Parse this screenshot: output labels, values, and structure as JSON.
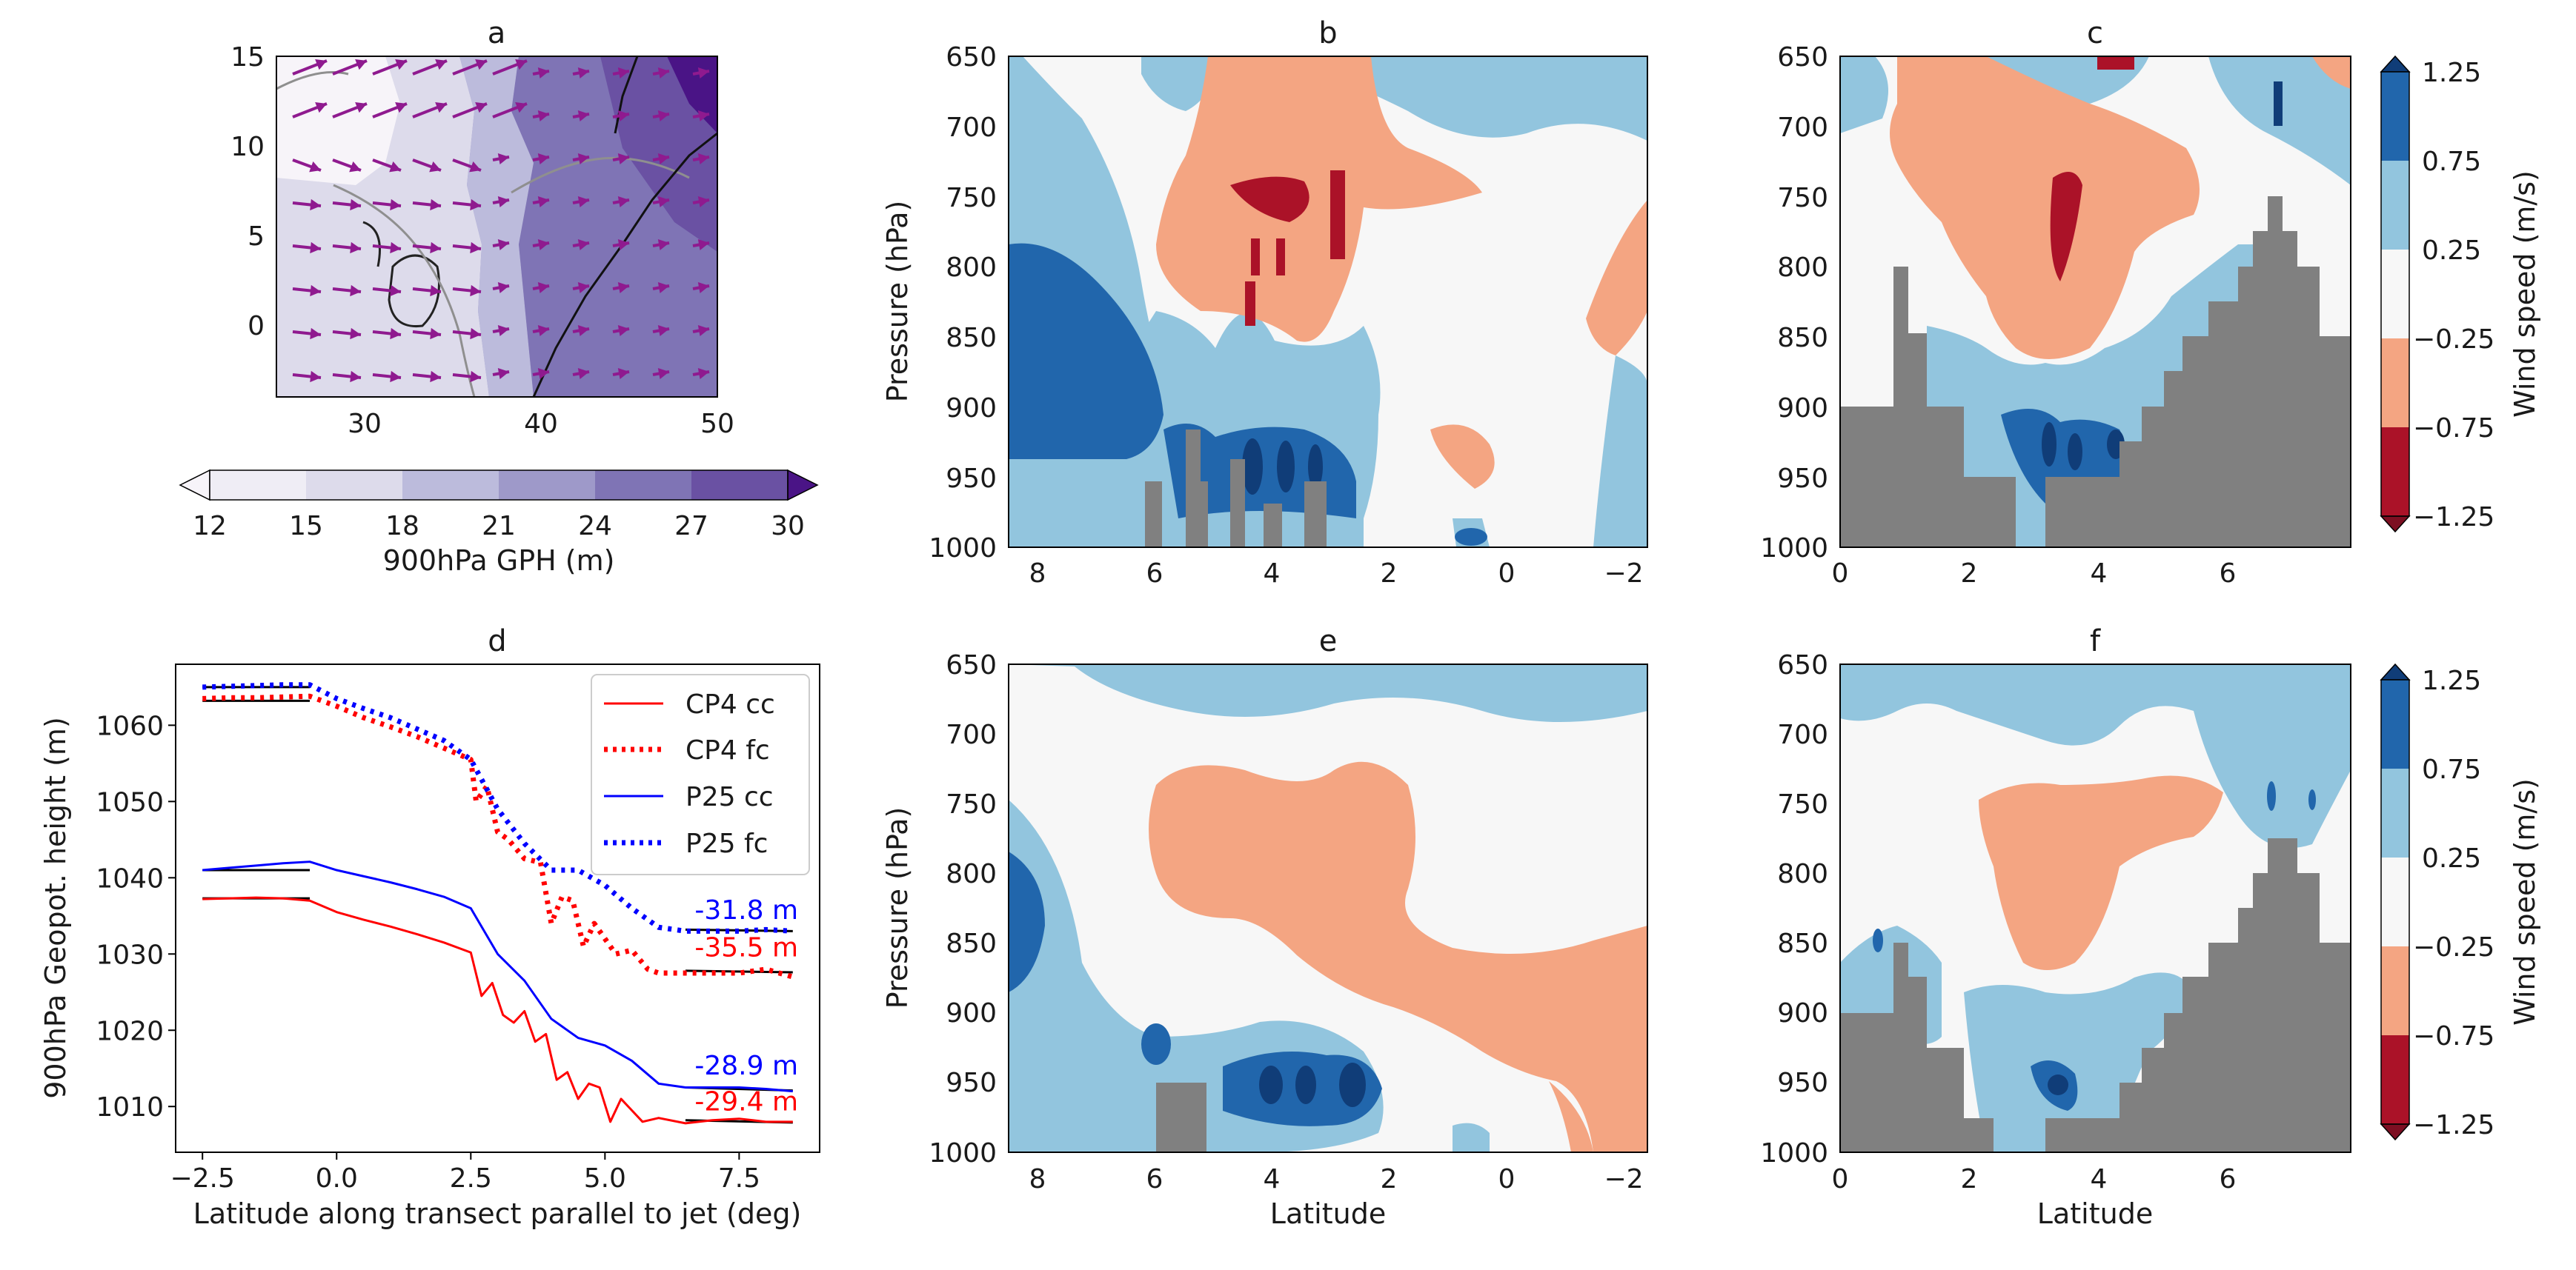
{
  "figure": {
    "colors": {
      "gph": [
        "#f7f4f9",
        "#dddbeb",
        "#bcbbdc",
        "#9e99c9",
        "#7f74b5",
        "#6a51a3",
        "#4a1486"
      ],
      "wind": [
        "#ab1228",
        "#f4a582",
        "#f7f7f7",
        "#92c5de",
        "#2166ac",
        "#103d78"
      ],
      "topo": "#808080",
      "arrow": "#8f1a8f"
    }
  },
  "chart_data": [
    {
      "id": "a",
      "type": "map",
      "title": "a",
      "xticks": [
        "30",
        "40",
        "50"
      ],
      "yticks": [
        "15",
        "10",
        "5",
        "0"
      ],
      "xlim": [
        25,
        50
      ],
      "ylim": [
        -4,
        15
      ],
      "colorbar": {
        "label": "900hPa GPH (m)",
        "ticks": [
          "12",
          "15",
          "18",
          "21",
          "24",
          "27",
          "30"
        ],
        "extend": "both"
      }
    },
    {
      "id": "b",
      "type": "contourf",
      "title": "b",
      "ylabel": "Pressure (hPa)",
      "xlabel": "",
      "yticks": [
        "650",
        "700",
        "750",
        "800",
        "850",
        "900",
        "950",
        "1000"
      ],
      "xticks": [
        "8",
        "6",
        "4",
        "2",
        "0",
        "−2"
      ],
      "xlim": [
        8.5,
        -2.4
      ],
      "ylim": [
        1000,
        650
      ]
    },
    {
      "id": "c",
      "type": "contourf",
      "title": "c",
      "ylabel": "",
      "xlabel": "",
      "yticks": [
        "650",
        "700",
        "750",
        "800",
        "850",
        "900",
        "950",
        "1000"
      ],
      "xticks": [
        "0",
        "2",
        "4",
        "6"
      ],
      "xlim": [
        0,
        7.9
      ],
      "ylim": [
        1000,
        650
      ],
      "colorbar": {
        "label": "Wind speed (m/s)",
        "ticks": [
          "1.25",
          "0.75",
          "0.25",
          "−0.25",
          "−0.75",
          "−1.25"
        ],
        "extend": "both"
      }
    },
    {
      "id": "d",
      "type": "line",
      "title": "d",
      "ylabel": "900hPa Geopot. height (m)",
      "xlabel": "Latitude along transect parallel to jet (deg)",
      "xticks": [
        "−2.5",
        "0.0",
        "2.5",
        "5.0",
        "7.5"
      ],
      "yticks": [
        "1060",
        "1050",
        "1040",
        "1030",
        "1020",
        "1010"
      ],
      "xlim": [
        -3.0,
        9.0
      ],
      "ylim": [
        1004,
        1068
      ],
      "legend_position": "top-right",
      "series": [
        {
          "name": "CP4 cc",
          "color": "#ff0000",
          "style": "solid",
          "x": [
            -2.5,
            -2.0,
            -1.5,
            -1.0,
            -0.5,
            0.0,
            0.5,
            1.0,
            1.5,
            2.0,
            2.5,
            2.7,
            2.9,
            3.1,
            3.3,
            3.5,
            3.7,
            3.9,
            4.1,
            4.3,
            4.5,
            4.7,
            4.9,
            5.1,
            5.3,
            5.5,
            5.7,
            6.0,
            6.5,
            7.0,
            7.5,
            8.0,
            8.5
          ],
          "y": [
            1037.2,
            1037.3,
            1037.4,
            1037.3,
            1037.0,
            1035.5,
            1034.5,
            1033.6,
            1032.6,
            1031.5,
            1030.2,
            1024.5,
            1026.2,
            1022.0,
            1021.0,
            1022.5,
            1018.5,
            1019.5,
            1013.5,
            1014.5,
            1011.0,
            1013.0,
            1012.5,
            1008.0,
            1011.0,
            1009.5,
            1008.0,
            1008.5,
            1007.8,
            1008.2,
            1008.4,
            1008.0,
            1008.0
          ]
        },
        {
          "name": "CP4 fc",
          "color": "#ff0000",
          "style": "dotted",
          "x": [
            -2.5,
            -2.0,
            -1.5,
            -1.0,
            -0.5,
            0.0,
            0.5,
            1.0,
            1.5,
            2.0,
            2.5,
            2.6,
            2.8,
            3.0,
            3.2,
            3.5,
            3.8,
            4.0,
            4.2,
            4.4,
            4.6,
            4.8,
            5.0,
            5.2,
            5.5,
            5.8,
            6.0,
            6.5,
            7.0,
            7.5,
            8.0,
            8.5
          ],
          "y": [
            1063.5,
            1063.6,
            1063.6,
            1063.7,
            1063.8,
            1062.5,
            1061.0,
            1059.8,
            1058.5,
            1057.0,
            1055.5,
            1050.0,
            1052.0,
            1046.0,
            1045.0,
            1042.5,
            1042.0,
            1034.0,
            1037.5,
            1037.0,
            1031.0,
            1034.0,
            1032.0,
            1030.0,
            1030.5,
            1028.0,
            1027.5,
            1027.5,
            1027.5,
            1027.5,
            1028.0,
            1027.0
          ]
        },
        {
          "name": "P25 cc",
          "color": "#0000ff",
          "style": "solid",
          "x": [
            -2.5,
            -2.0,
            -1.5,
            -1.0,
            -0.5,
            0.0,
            0.5,
            1.0,
            1.5,
            2.0,
            2.5,
            3.0,
            3.5,
            4.0,
            4.5,
            5.0,
            5.5,
            6.0,
            6.5,
            7.0,
            7.5,
            8.0,
            8.5
          ],
          "y": [
            1041.0,
            1041.3,
            1041.6,
            1041.9,
            1042.1,
            1041.0,
            1040.2,
            1039.4,
            1038.5,
            1037.5,
            1036.0,
            1030.0,
            1026.5,
            1021.5,
            1019.0,
            1018.0,
            1016.0,
            1013.0,
            1012.5,
            1012.5,
            1012.5,
            1012.3,
            1012.0
          ]
        },
        {
          "name": "P25 fc",
          "color": "#0000ff",
          "style": "dotted",
          "x": [
            -2.5,
            -2.0,
            -1.5,
            -1.0,
            -0.5,
            0.0,
            0.5,
            1.0,
            1.5,
            2.0,
            2.5,
            3.0,
            3.5,
            4.0,
            4.5,
            5.0,
            5.5,
            6.0,
            6.5,
            7.0,
            7.5,
            8.0,
            8.5
          ],
          "y": [
            1065.0,
            1065.1,
            1065.2,
            1065.3,
            1065.3,
            1063.5,
            1062.2,
            1061.0,
            1059.5,
            1058.0,
            1055.5,
            1049.0,
            1044.5,
            1041.0,
            1041.0,
            1039.0,
            1036.0,
            1033.5,
            1033.0,
            1033.0,
            1033.0,
            1033.2,
            1033.0
          ]
        }
      ],
      "fit_lines": [
        {
          "x": [
            -2.5,
            -0.5
          ],
          "y": [
            1037.3,
            1037.3
          ]
        },
        {
          "x": [
            6.5,
            8.5
          ],
          "y": [
            1008.2,
            1007.9
          ]
        },
        {
          "x": [
            -2.5,
            -0.5
          ],
          "y": [
            1063.2,
            1063.2
          ]
        },
        {
          "x": [
            6.5,
            8.5
          ],
          "y": [
            1027.8,
            1027.6
          ]
        },
        {
          "x": [
            -2.5,
            -0.5
          ],
          "y": [
            1041.0,
            1041.0
          ]
        },
        {
          "x": [
            6.5,
            8.5
          ],
          "y": [
            1012.5,
            1012.1
          ]
        },
        {
          "x": [
            -2.5,
            -0.5
          ],
          "y": [
            1065.0,
            1065.0
          ]
        },
        {
          "x": [
            6.5,
            8.5
          ],
          "y": [
            1033.2,
            1033.0
          ]
        }
      ],
      "annotations": [
        {
          "text": "-31.8 m",
          "color": "#0000ff",
          "x": 8.6,
          "y": 1034.6
        },
        {
          "text": "-35.5 m",
          "color": "#ff0000",
          "x": 8.6,
          "y": 1029.7
        },
        {
          "text": "-28.9 m",
          "color": "#0000ff",
          "x": 8.6,
          "y": 1014.2
        },
        {
          "text": "-29.4 m",
          "color": "#ff0000",
          "x": 8.6,
          "y": 1009.5
        }
      ]
    },
    {
      "id": "e",
      "type": "contourf",
      "title": "e",
      "ylabel": "Pressure (hPa)",
      "xlabel": "Latitude",
      "yticks": [
        "650",
        "700",
        "750",
        "800",
        "850",
        "900",
        "950",
        "1000"
      ],
      "xticks": [
        "8",
        "6",
        "4",
        "2",
        "0",
        "−2"
      ],
      "xlim": [
        8.5,
        -2.4
      ],
      "ylim": [
        1000,
        650
      ]
    },
    {
      "id": "f",
      "type": "contourf",
      "title": "f",
      "ylabel": "",
      "xlabel": "Latitude",
      "yticks": [
        "650",
        "700",
        "750",
        "800",
        "850",
        "900",
        "950",
        "1000"
      ],
      "xticks": [
        "0",
        "2",
        "4",
        "6"
      ],
      "xlim": [
        0,
        7.9
      ],
      "ylim": [
        1000,
        650
      ],
      "colorbar": {
        "label": "Wind speed (m/s)",
        "ticks": [
          "1.25",
          "0.75",
          "0.25",
          "−0.25",
          "−0.75",
          "−1.25"
        ],
        "extend": "both"
      }
    }
  ]
}
